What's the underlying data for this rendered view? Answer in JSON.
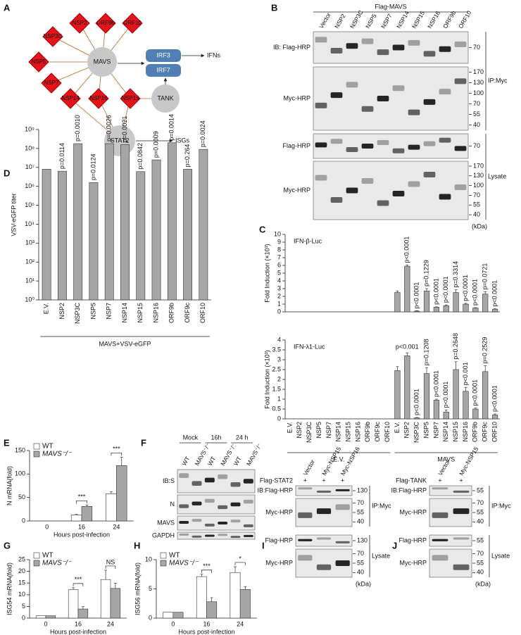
{
  "network": {
    "label": "A",
    "hub": "MAVS",
    "viral": [
      "NSP3C",
      "NSP2",
      "ORF9b",
      "ORF10",
      "NSP5",
      "NSP7",
      "NSP14",
      "NSP16",
      "NSP15"
    ],
    "host": [
      "IRF3",
      "IRF7",
      "TANK",
      "STAT2"
    ],
    "outputs": [
      "IFNs",
      "ISGs"
    ]
  },
  "blots": [
    {
      "label": "B",
      "header": "Flag-MAVS",
      "lanes": [
        "Vector",
        "NSP2",
        "NSP3C",
        "NSP5",
        "NSP7",
        "NSP14",
        "NSP15",
        "NSP16",
        "ORF9b",
        "ORF10"
      ],
      "rows": [
        {
          "label": "IB: Flag-HRP",
          "markers": [
            70
          ]
        },
        {
          "label": "Myc-HRP",
          "markers": [
            170,
            130,
            100,
            70,
            55,
            40
          ]
        },
        {
          "label": "Flag-HRP",
          "markers": [
            70
          ]
        },
        {
          "label": "Myc-HRP",
          "markers": [
            170,
            130,
            100,
            70,
            55,
            40
          ]
        }
      ],
      "brackets": [
        "IP:Myc",
        "Lysate"
      ],
      "unit": "(kDa)"
    },
    {
      "label": "F",
      "groups": [
        "Mock",
        "16h",
        "24 h"
      ],
      "lanes": [
        "WT",
        "MAVS⁻/⁻",
        "WT",
        "MAVS⁻/⁻",
        "WT",
        "MAVS⁻/⁻"
      ],
      "rows": [
        {
          "label": "IB:S"
        },
        {
          "label": "N"
        },
        {
          "label": "MAVS"
        },
        {
          "label": "GAPDH"
        }
      ]
    },
    {
      "label": "I",
      "treatment": "Flag-STAT2",
      "plus": [
        "+",
        "+",
        "+"
      ],
      "lanes": [
        "Vector",
        "Myc-NSP15",
        "Myc-NSP16"
      ],
      "rows": [
        {
          "label": "IB:Flag-HRP",
          "markers": [
            130
          ]
        },
        {
          "label": "Myc-HRP",
          "markers": [
            70,
            55,
            40
          ]
        },
        {
          "label": "Flag-HRP",
          "markers": [
            130
          ]
        },
        {
          "label": "Myc-HRP",
          "markers": [
            70,
            55,
            40
          ]
        }
      ],
      "brackets": [
        "IP:Myc",
        "Lysate"
      ],
      "unit": "(kDa)"
    },
    {
      "label": "J",
      "treatment": "Flag-TANK",
      "plus": [
        "+",
        "+"
      ],
      "lanes": [
        "Vector",
        "Myc-NSP15"
      ],
      "rows": [
        {
          "label": "IB:Flag-HRP",
          "markers": [
            55
          ]
        },
        {
          "label": "Myc-HRP",
          "markers": [
            70,
            55,
            40
          ]
        },
        {
          "label": "Flag-HRP",
          "markers": [
            55
          ]
        },
        {
          "label": "Myc-HRP",
          "markers": [
            70,
            55,
            40
          ]
        }
      ],
      "brackets": [
        "IP:Myc",
        "Lysate"
      ],
      "unit": "(kDa)"
    }
  ],
  "chart_data": [
    {
      "type": "bar",
      "label": "D",
      "y_label": "VSV-eGFP titer",
      "log_scale": true,
      "categories": [
        "E.V.",
        "NSP2",
        "NSP3C",
        "NSP5",
        "NSP7",
        "NSP14",
        "NSP15",
        "NSP16",
        "ORF9b",
        "ORF9c",
        "ORF10"
      ],
      "group_label": "MAVS+VSV-eGFP",
      "series": [
        {
          "color": "#a6a6a6",
          "values": [
            8000000,
            6300000,
            180000000,
            1600000,
            180000000,
            160000000,
            6000000,
            25000000,
            200000000,
            8000000,
            90000000
          ]
        }
      ],
      "annotations": [
        null,
        "p=0.0114",
        "p=0.0010",
        "p=0.0124",
        "p=0.0026",
        "p=0.0021",
        "p=0.0842",
        "p=0.0009",
        "p=0.0014",
        "p=0.264",
        "p=0.0024"
      ],
      "ylim": [
        1,
        1000000000
      ],
      "yticks": [
        {
          "value": 1,
          "label": "10⁰"
        },
        {
          "value": 10,
          "label": "10¹"
        },
        {
          "value": 100,
          "label": "10²"
        },
        {
          "value": 1000,
          "label": "10³"
        },
        {
          "value": 10000,
          "label": "10⁴"
        },
        {
          "value": 100000,
          "label": "10⁵"
        },
        {
          "value": 1000000,
          "label": "10⁶"
        },
        {
          "value": 10000000,
          "label": "10⁷"
        },
        {
          "value": 100000000,
          "label": "10⁸"
        },
        {
          "value": 1000000000,
          "label": "10⁹"
        }
      ]
    },
    {
      "type": "bar",
      "label": "C",
      "title": "IFN-β-Luc",
      "y_label": "Fold Induction (×10³)",
      "series": [
        {
          "color": "#a6a6a6",
          "values": [
            0,
            0,
            0,
            0,
            0,
            0,
            0,
            0,
            0,
            0,
            0,
            2.5,
            5.9,
            0.1,
            2.7,
            0.6,
            0.8,
            2.5,
            1.0,
            0.5,
            2.3,
            0.35
          ],
          "errors": [
            null,
            null,
            null,
            null,
            null,
            null,
            null,
            null,
            null,
            null,
            null,
            0.2,
            0.15,
            0.05,
            0.3,
            0.05,
            0.1,
            0.35,
            0.1,
            0.05,
            0.3,
            0.05
          ]
        }
      ],
      "annotations": [
        null,
        null,
        null,
        null,
        null,
        null,
        null,
        null,
        null,
        null,
        null,
        null,
        "p<0.0001",
        "p<0.0001",
        "p=0.1229",
        "p<0.0001",
        "p<0.0001",
        "p=0.3314",
        "p<0.0001",
        "p<0.0001",
        "p=0.0721",
        "p<0.0001"
      ],
      "ylim": [
        0,
        10
      ],
      "yticks": [
        0,
        1,
        2,
        3,
        4,
        5,
        6,
        7,
        8,
        9,
        10
      ]
    },
    {
      "type": "bar",
      "title": "IFN-λ1-Luc",
      "y_label": "Fold Induction (×10³)",
      "categories": [
        "E.V.",
        "NSP2",
        "NSP3C",
        "NSP5",
        "NSP7",
        "NSP14",
        "NSP15",
        "NSP16",
        "ORF9b",
        "ORF9c",
        "ORF10",
        "E.V.",
        "NSP2",
        "NSP3C",
        "NSP5",
        "NSP7",
        "NSP14",
        "NSP15",
        "NSP16",
        "ORF9b",
        "ORF9c",
        "ORF10"
      ],
      "groups": [
        "E.V.",
        "MAVS"
      ],
      "series": [
        {
          "color": "#a6a6a6",
          "values": [
            0,
            0,
            0,
            0,
            0,
            0,
            0,
            0,
            0,
            0,
            0,
            2.45,
            3.2,
            0.05,
            2.3,
            0.95,
            0.35,
            2.5,
            1.4,
            0.5,
            2.4,
            0.2
          ],
          "errors": [
            null,
            null,
            null,
            null,
            null,
            null,
            null,
            null,
            null,
            null,
            null,
            0.2,
            0.15,
            0.02,
            0.3,
            0.05,
            0.1,
            0.4,
            0.2,
            0.05,
            0.3,
            0.05
          ]
        }
      ],
      "annotations": [
        null,
        null,
        null,
        null,
        null,
        null,
        null,
        null,
        null,
        null,
        null,
        null,
        "p<0.001",
        "p<0.0001",
        "p=0.1208",
        "p<0.0001",
        "p<0.0001",
        "p=0.2648",
        "p<0.001",
        "p<0.0001",
        "p=0.2529",
        "p<0.0001"
      ],
      "ylim": [
        0,
        4
      ],
      "yticks": [
        0,
        0.5,
        1,
        1.5,
        2,
        2.5,
        3,
        3.5,
        4
      ]
    },
    {
      "type": "bar",
      "label": "E",
      "y_label": "N mRNA(fold)",
      "x_label": "Hours post-infection",
      "categories": [
        "0",
        "16",
        "24"
      ],
      "series": [
        {
          "name": "WT",
          "color": "#ffffff",
          "values": [
            0,
            13,
            58
          ],
          "errors": [
            0,
            1,
            4
          ]
        },
        {
          "name": "MAVS⁻/⁻",
          "color": "#a6a6a6",
          "values": [
            0,
            31,
            118
          ],
          "errors": [
            0,
            3,
            18
          ]
        }
      ],
      "significance": [
        null,
        "***",
        "***"
      ],
      "legend": "upper left",
      "ylim": [
        0,
        150
      ],
      "yticks": [
        0,
        50,
        100,
        150
      ]
    },
    {
      "type": "bar",
      "label": "G",
      "y_label": "ISG54 mRNA(fold)",
      "x_label": "Hours post-infection",
      "categories": [
        "0",
        "16",
        "24"
      ],
      "series": [
        {
          "name": "WT",
          "color": "#ffffff",
          "values": [
            1,
            12.2,
            16.5
          ],
          "errors": [
            0,
            0.8,
            4
          ]
        },
        {
          "name": "MAVS⁻/⁻",
          "color": "#a6a6a6",
          "values": [
            1,
            3.9,
            12.7
          ],
          "errors": [
            0,
            1,
            2.2
          ]
        }
      ],
      "significance": [
        null,
        "***",
        "NS"
      ],
      "legend": "upper left",
      "ylim": [
        0,
        25
      ],
      "yticks": [
        0,
        5,
        10,
        15,
        20,
        25
      ]
    },
    {
      "type": "bar",
      "label": "H",
      "y_label": "ISG56 mRNA(fold)",
      "x_label": "Hours post-infection",
      "categories": [
        "0",
        "16",
        "24"
      ],
      "series": [
        {
          "name": "WT",
          "color": "#ffffff",
          "values": [
            1,
            7.1,
            7.8
          ],
          "errors": [
            0,
            0.4,
            1
          ]
        },
        {
          "name": "MAVS⁻/⁻",
          "color": "#a6a6a6",
          "values": [
            1,
            2.8,
            4.9
          ],
          "errors": [
            0,
            0.7,
            0.5
          ]
        }
      ],
      "significance": [
        null,
        "***",
        "*"
      ],
      "legend": "upper left",
      "ylim": [
        0,
        10
      ],
      "yticks": [
        0,
        5,
        10
      ]
    }
  ]
}
